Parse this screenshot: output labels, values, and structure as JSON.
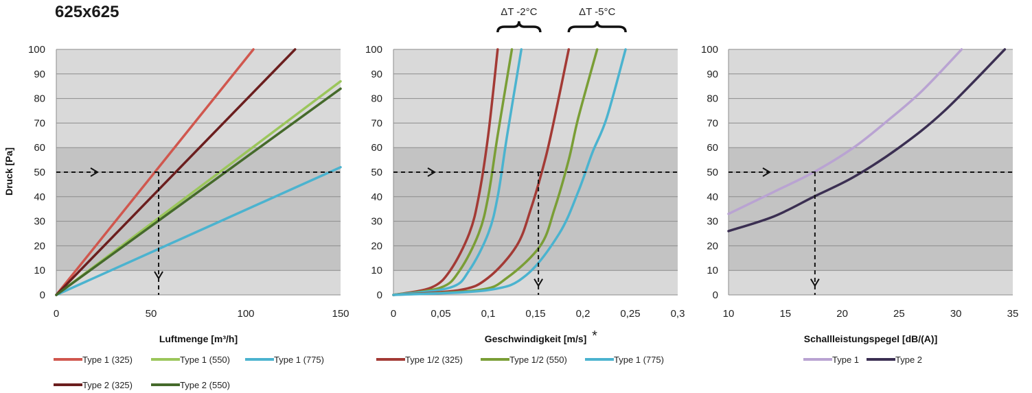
{
  "page_title": "625x625",
  "shared": {
    "ylabel": "Druck [Pa]",
    "band_colors": {
      "outer": "#d9d9d9",
      "inner": "#c3c3c3",
      "grid": "#8c8c8c",
      "axis": "#8c8c8c"
    }
  },
  "annotations": {
    "delta_t_1": "ΔT -2°C",
    "delta_t_2": "ΔT -5°C",
    "asterisk": "*"
  },
  "chart_data": [
    {
      "type": "line",
      "xlabel": "Luftmenge [m³/h]",
      "ylabel": "Druck [Pa]",
      "xlim": [
        0,
        150
      ],
      "ylim": [
        0,
        100
      ],
      "xticks": [
        0,
        50,
        100,
        150
      ],
      "yticks": [
        0,
        10,
        20,
        30,
        40,
        50,
        60,
        70,
        80,
        90,
        100
      ],
      "band": [
        10,
        60
      ],
      "grid": true,
      "legend_position": "bottom",
      "series": [
        {
          "name": "Type 1 (325)",
          "color": "#d0574e",
          "x": [
            0,
            104
          ],
          "y": [
            0,
            100
          ]
        },
        {
          "name": "Type 1 (550)",
          "color": "#9bc65b",
          "x": [
            0,
            150
          ],
          "y": [
            0,
            87
          ]
        },
        {
          "name": "Type 1 (775)",
          "color": "#4bb3cf",
          "x": [
            0,
            150
          ],
          "y": [
            0,
            52
          ]
        },
        {
          "name": "Type 2 (325)",
          "color": "#6b1e1e",
          "x": [
            0,
            126
          ],
          "y": [
            0,
            100
          ]
        },
        {
          "name": "Type 2 (550)",
          "color": "#456a2b",
          "x": [
            0,
            150
          ],
          "y": [
            0,
            84
          ]
        }
      ],
      "guide": {
        "y": 50,
        "x": 54,
        "y_drop": 7
      }
    },
    {
      "type": "line",
      "xlabel": "Geschwindigkeit [m/s]",
      "ylabel": "Druck [Pa]",
      "xlim": [
        0,
        0.3
      ],
      "ylim": [
        0,
        100
      ],
      "xticks": [
        0,
        0.05,
        0.1,
        0.15,
        0.2,
        0.25,
        0.3
      ],
      "xtick_labels": [
        "0",
        "0,05",
        "0,1",
        "0,15",
        "0,2",
        "0,25",
        "0,3"
      ],
      "yticks": [
        0,
        10,
        20,
        30,
        40,
        50,
        60,
        70,
        80,
        90,
        100
      ],
      "band": [
        10,
        60
      ],
      "grid": true,
      "legend_position": "bottom",
      "series": [
        {
          "name": "Type 1/2 (325)",
          "color": "#a33a35",
          "x": [
            0,
            0.04,
            0.06,
            0.08,
            0.09,
            0.1,
            0.11
          ],
          "y": [
            0,
            3,
            10,
            25,
            40,
            65,
            100
          ]
        },
        {
          "name": "Type 1/2 (550)",
          "color": "#7a9e36",
          "x": [
            0,
            0.05,
            0.07,
            0.09,
            0.1,
            0.11,
            0.125
          ],
          "y": [
            0,
            3,
            10,
            25,
            40,
            65,
            100
          ]
        },
        {
          "name": "Type 1 (775)",
          "color": "#4bb3cf",
          "x": [
            0,
            0.06,
            0.08,
            0.1,
            0.11,
            0.12,
            0.135
          ],
          "y": [
            0,
            3,
            10,
            25,
            40,
            65,
            100
          ]
        },
        {
          "name": "Type 1/2 (325)",
          "color": "#a33a35",
          "legend": false,
          "x": [
            0,
            0.07,
            0.1,
            0.13,
            0.145,
            0.16,
            0.17,
            0.185
          ],
          "y": [
            0,
            2,
            7,
            20,
            35,
            55,
            72,
            100
          ]
        },
        {
          "name": "Type 1/2 (550)",
          "color": "#7a9e36",
          "legend": false,
          "x": [
            0,
            0.09,
            0.12,
            0.155,
            0.17,
            0.185,
            0.195,
            0.215
          ],
          "y": [
            0,
            2,
            7,
            20,
            35,
            55,
            72,
            100
          ]
        },
        {
          "name": "Type 1 (775)",
          "color": "#4bb3cf",
          "legend": false,
          "x": [
            0,
            0.1,
            0.14,
            0.175,
            0.195,
            0.21,
            0.225,
            0.245
          ],
          "y": [
            0,
            2,
            8,
            25,
            42,
            58,
            72,
            100
          ]
        }
      ],
      "guide": {
        "y": 50,
        "x": 0.153,
        "y_drop": 4
      },
      "brackets": [
        {
          "label_key": "delta_t_1",
          "x_from": 0.11,
          "x_to": 0.155
        },
        {
          "label_key": "delta_t_2",
          "x_from": 0.185,
          "x_to": 0.245
        }
      ]
    },
    {
      "type": "line",
      "xlabel": "Schallleistungspegel [dB/(A)]",
      "ylabel": "Druck [Pa]",
      "xlim": [
        10,
        35
      ],
      "ylim": [
        0,
        100
      ],
      "xticks": [
        10,
        15,
        20,
        25,
        30,
        35
      ],
      "yticks": [
        0,
        10,
        20,
        30,
        40,
        50,
        60,
        70,
        80,
        90,
        100
      ],
      "ytick_labels": [
        "0",
        "10",
        "20",
        "30",
        "40",
        "50",
        "60",
        "70",
        "80",
        "90",
        "100"
      ],
      "band": [
        10,
        60
      ],
      "grid": true,
      "legend_position": "bottom",
      "series": [
        {
          "name": "Type 1",
          "color": "#b9a3d2",
          "x": [
            10,
            14,
            17.5,
            21,
            24,
            27,
            30.5
          ],
          "y": [
            33,
            42,
            50,
            60,
            71,
            83,
            100
          ]
        },
        {
          "name": "Type 2",
          "color": "#3b2f52",
          "x": [
            10,
            14,
            17.5,
            21,
            25,
            29,
            34.3
          ],
          "y": [
            26,
            32,
            40,
            48,
            60,
            75,
            100
          ]
        }
      ],
      "guide": {
        "y": 50,
        "x": 17.6,
        "y_drop": 4
      }
    }
  ]
}
